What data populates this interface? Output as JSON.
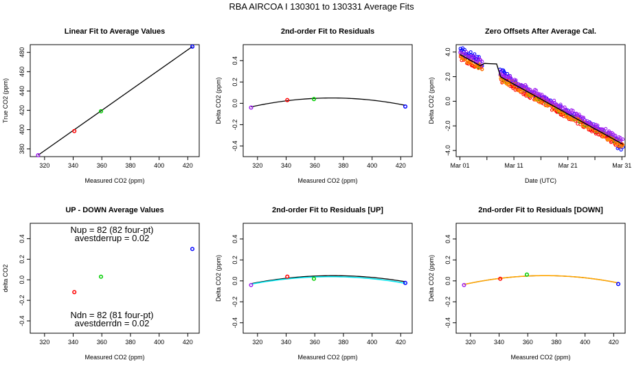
{
  "figure_title": "RBA   AIRCOA I   130301 to 130331   Average Fits",
  "chart_data": [
    {
      "type": "scatter",
      "title": "Linear Fit to Average Values",
      "xlabel": "Measured CO2 (ppm)",
      "ylabel": "True CO2 (ppm)",
      "xlim": [
        310,
        428
      ],
      "ylim": [
        372,
        488
      ],
      "xticks": [
        320,
        340,
        360,
        380,
        400,
        420
      ],
      "yticks": [
        380,
        400,
        420,
        440,
        460,
        480
      ],
      "points": [
        {
          "x": 315.5,
          "y": 373.5,
          "color": "#a020f0"
        },
        {
          "x": 340.8,
          "y": 398.5,
          "color": "#ff0000"
        },
        {
          "x": 359.4,
          "y": 419.0,
          "color": "#00cd00"
        },
        {
          "x": 423.2,
          "y": 486.0,
          "color": "#0000ff"
        }
      ],
      "fit": {
        "kind": "line",
        "x0": 315.5,
        "y0": 373.5,
        "x1": 423.2,
        "y1": 486.0,
        "color": "#000000"
      }
    },
    {
      "type": "scatter",
      "title": "2nd-order Fit to Residuals",
      "xlabel": "Measured CO2 (ppm)",
      "ylabel": "Delta CO2 (ppm)",
      "xlim": [
        310,
        428
      ],
      "ylim": [
        -0.5,
        0.55
      ],
      "xticks": [
        320,
        340,
        360,
        380,
        400,
        420
      ],
      "yticks": [
        -0.4,
        -0.2,
        0.0,
        0.2,
        0.4
      ],
      "points": [
        {
          "x": 315.5,
          "y": -0.04,
          "color": "#a020f0"
        },
        {
          "x": 340.8,
          "y": 0.03,
          "color": "#ff0000"
        },
        {
          "x": 359.4,
          "y": 0.04,
          "color": "#00cd00"
        },
        {
          "x": 423.2,
          "y": -0.03,
          "color": "#0000ff"
        }
      ],
      "fit": {
        "kind": "quadratic",
        "xmin": 315.5,
        "xmax": 423.2,
        "vertex_x": 372,
        "vertex_y": 0.05,
        "curvature": -2.62e-05,
        "color": "#000000"
      }
    },
    {
      "type": "scatter",
      "title": "Zero Offsets After Average Cal.",
      "xlabel": "Date (UTC)",
      "ylabel": "Delta CO2 (ppm)",
      "xlim": [
        0.3,
        31.6
      ],
      "ylim": [
        -4.5,
        4.6
      ],
      "xticks": [
        1,
        11,
        21,
        31
      ],
      "xtick_labels": [
        "Mar 01",
        "Mar 11",
        "Mar 21",
        "Mar 31"
      ],
      "yticks": [
        -4,
        -2,
        0,
        2,
        4
      ],
      "trend": {
        "day_start": 1,
        "value_start": 3.8,
        "day_end": 31.2,
        "value_end": -3.5
      },
      "series_colors": [
        "#0000ff",
        "#ff0000",
        "#00cd00",
        "#ff8c00",
        "#a020f0"
      ],
      "fit_color": "#000000"
    },
    {
      "type": "scatter",
      "title": "UP - DOWN Average Values",
      "xlabel": "Measured CO2 (ppm)",
      "ylabel": "delta CO2",
      "xlim": [
        310,
        428
      ],
      "ylim": [
        -0.52,
        0.55
      ],
      "xticks": [
        320,
        340,
        360,
        380,
        400,
        420
      ],
      "yticks": [
        -0.4,
        -0.2,
        0.0,
        0.2,
        0.4
      ],
      "points": [
        {
          "x": 340.8,
          "y": -0.12,
          "color": "#ff0000"
        },
        {
          "x": 359.4,
          "y": 0.03,
          "color": "#00cd00"
        },
        {
          "x": 423.2,
          "y": 0.3,
          "color": "#0000ff"
        }
      ],
      "annotations": {
        "nup": "Nup = 82 (82 four-pt)",
        "avestderrup": "avestderrup =  0.02",
        "ndn": "Ndn = 82 (81 four-pt)",
        "avestderrdn": "avestderrdn =  0.02"
      }
    },
    {
      "type": "scatter",
      "title": "2nd-order Fit to Residuals [UP]",
      "xlabel": "Measured CO2 (ppm)",
      "ylabel": "Delta CO2 (ppm)",
      "xlim": [
        310,
        428
      ],
      "ylim": [
        -0.5,
        0.55
      ],
      "xticks": [
        320,
        340,
        360,
        380,
        400,
        420
      ],
      "yticks": [
        -0.4,
        -0.2,
        0.0,
        0.2,
        0.4
      ],
      "points": [
        {
          "x": 315.5,
          "y": -0.04,
          "color": "#a020f0"
        },
        {
          "x": 340.8,
          "y": 0.04,
          "color": "#ff0000"
        },
        {
          "x": 359.4,
          "y": 0.02,
          "color": "#00cd00"
        },
        {
          "x": 423.2,
          "y": -0.02,
          "color": "#0000ff"
        }
      ],
      "fit": {
        "kind": "quadratic",
        "xmin": 315.5,
        "xmax": 423.2,
        "vertex_x": 373,
        "vertex_y": 0.05,
        "curvature": -2.31e-05,
        "color": "#000000"
      },
      "fit2": {
        "kind": "quadratic",
        "xmin": 315.5,
        "xmax": 423.2,
        "vertex_x": 371,
        "vertex_y": 0.04,
        "curvature": -2.31e-05,
        "color": "#00e5ee"
      }
    },
    {
      "type": "scatter",
      "title": "2nd-order Fit to Residuals [DOWN]",
      "xlabel": "Measured CO2 (ppm)",
      "ylabel": "Delta CO2 (ppm)",
      "xlim": [
        310,
        428
      ],
      "ylim": [
        -0.5,
        0.55
      ],
      "xticks": [
        320,
        340,
        360,
        380,
        400,
        420
      ],
      "yticks": [
        -0.4,
        -0.2,
        0.0,
        0.2,
        0.4
      ],
      "points": [
        {
          "x": 315.5,
          "y": -0.04,
          "color": "#a020f0"
        },
        {
          "x": 340.8,
          "y": 0.02,
          "color": "#ff0000"
        },
        {
          "x": 359.4,
          "y": 0.06,
          "color": "#00cd00"
        },
        {
          "x": 423.2,
          "y": -0.03,
          "color": "#0000ff"
        }
      ],
      "fit": {
        "kind": "quadratic",
        "xmin": 315.5,
        "xmax": 423.2,
        "vertex_x": 372,
        "vertex_y": 0.05,
        "curvature": -2.65e-05,
        "color": "#000000"
      },
      "fit2": {
        "kind": "quadratic",
        "xmin": 315.5,
        "xmax": 423.2,
        "vertex_x": 372,
        "vertex_y": 0.05,
        "curvature": -2.65e-05,
        "color": "#ffa500"
      }
    }
  ]
}
